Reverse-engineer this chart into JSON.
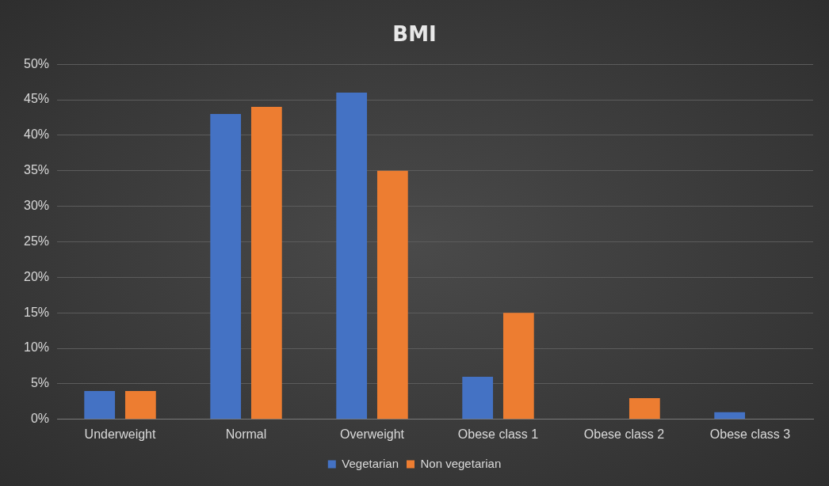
{
  "chart_data": {
    "type": "bar",
    "title": "BMI",
    "categories": [
      "Underweight",
      "Normal",
      "Overweight",
      "Obese class 1",
      "Obese class 2",
      "Obese class 3"
    ],
    "series": [
      {
        "name": "Vegetarian",
        "color": "#4472c4",
        "values": [
          4,
          43,
          46,
          6,
          0,
          1
        ]
      },
      {
        "name": "Non vegetarian",
        "color": "#ed7d31",
        "values": [
          4,
          44,
          35,
          15,
          3,
          0
        ]
      }
    ],
    "ylim": [
      0,
      50
    ],
    "yticks": [
      {
        "value": 0,
        "label": "0%"
      },
      {
        "value": 5,
        "label": "5%"
      },
      {
        "value": 10,
        "label": "10%"
      },
      {
        "value": 15,
        "label": "15%"
      },
      {
        "value": 20,
        "label": "20%"
      },
      {
        "value": 25,
        "label": "25%"
      },
      {
        "value": 30,
        "label": "30%"
      },
      {
        "value": 35,
        "label": "35%"
      },
      {
        "value": 40,
        "label": "40%"
      },
      {
        "value": 45,
        "label": "45%"
      },
      {
        "value": 50,
        "label": "50%"
      }
    ],
    "grid": "y",
    "legend": "bottom"
  }
}
